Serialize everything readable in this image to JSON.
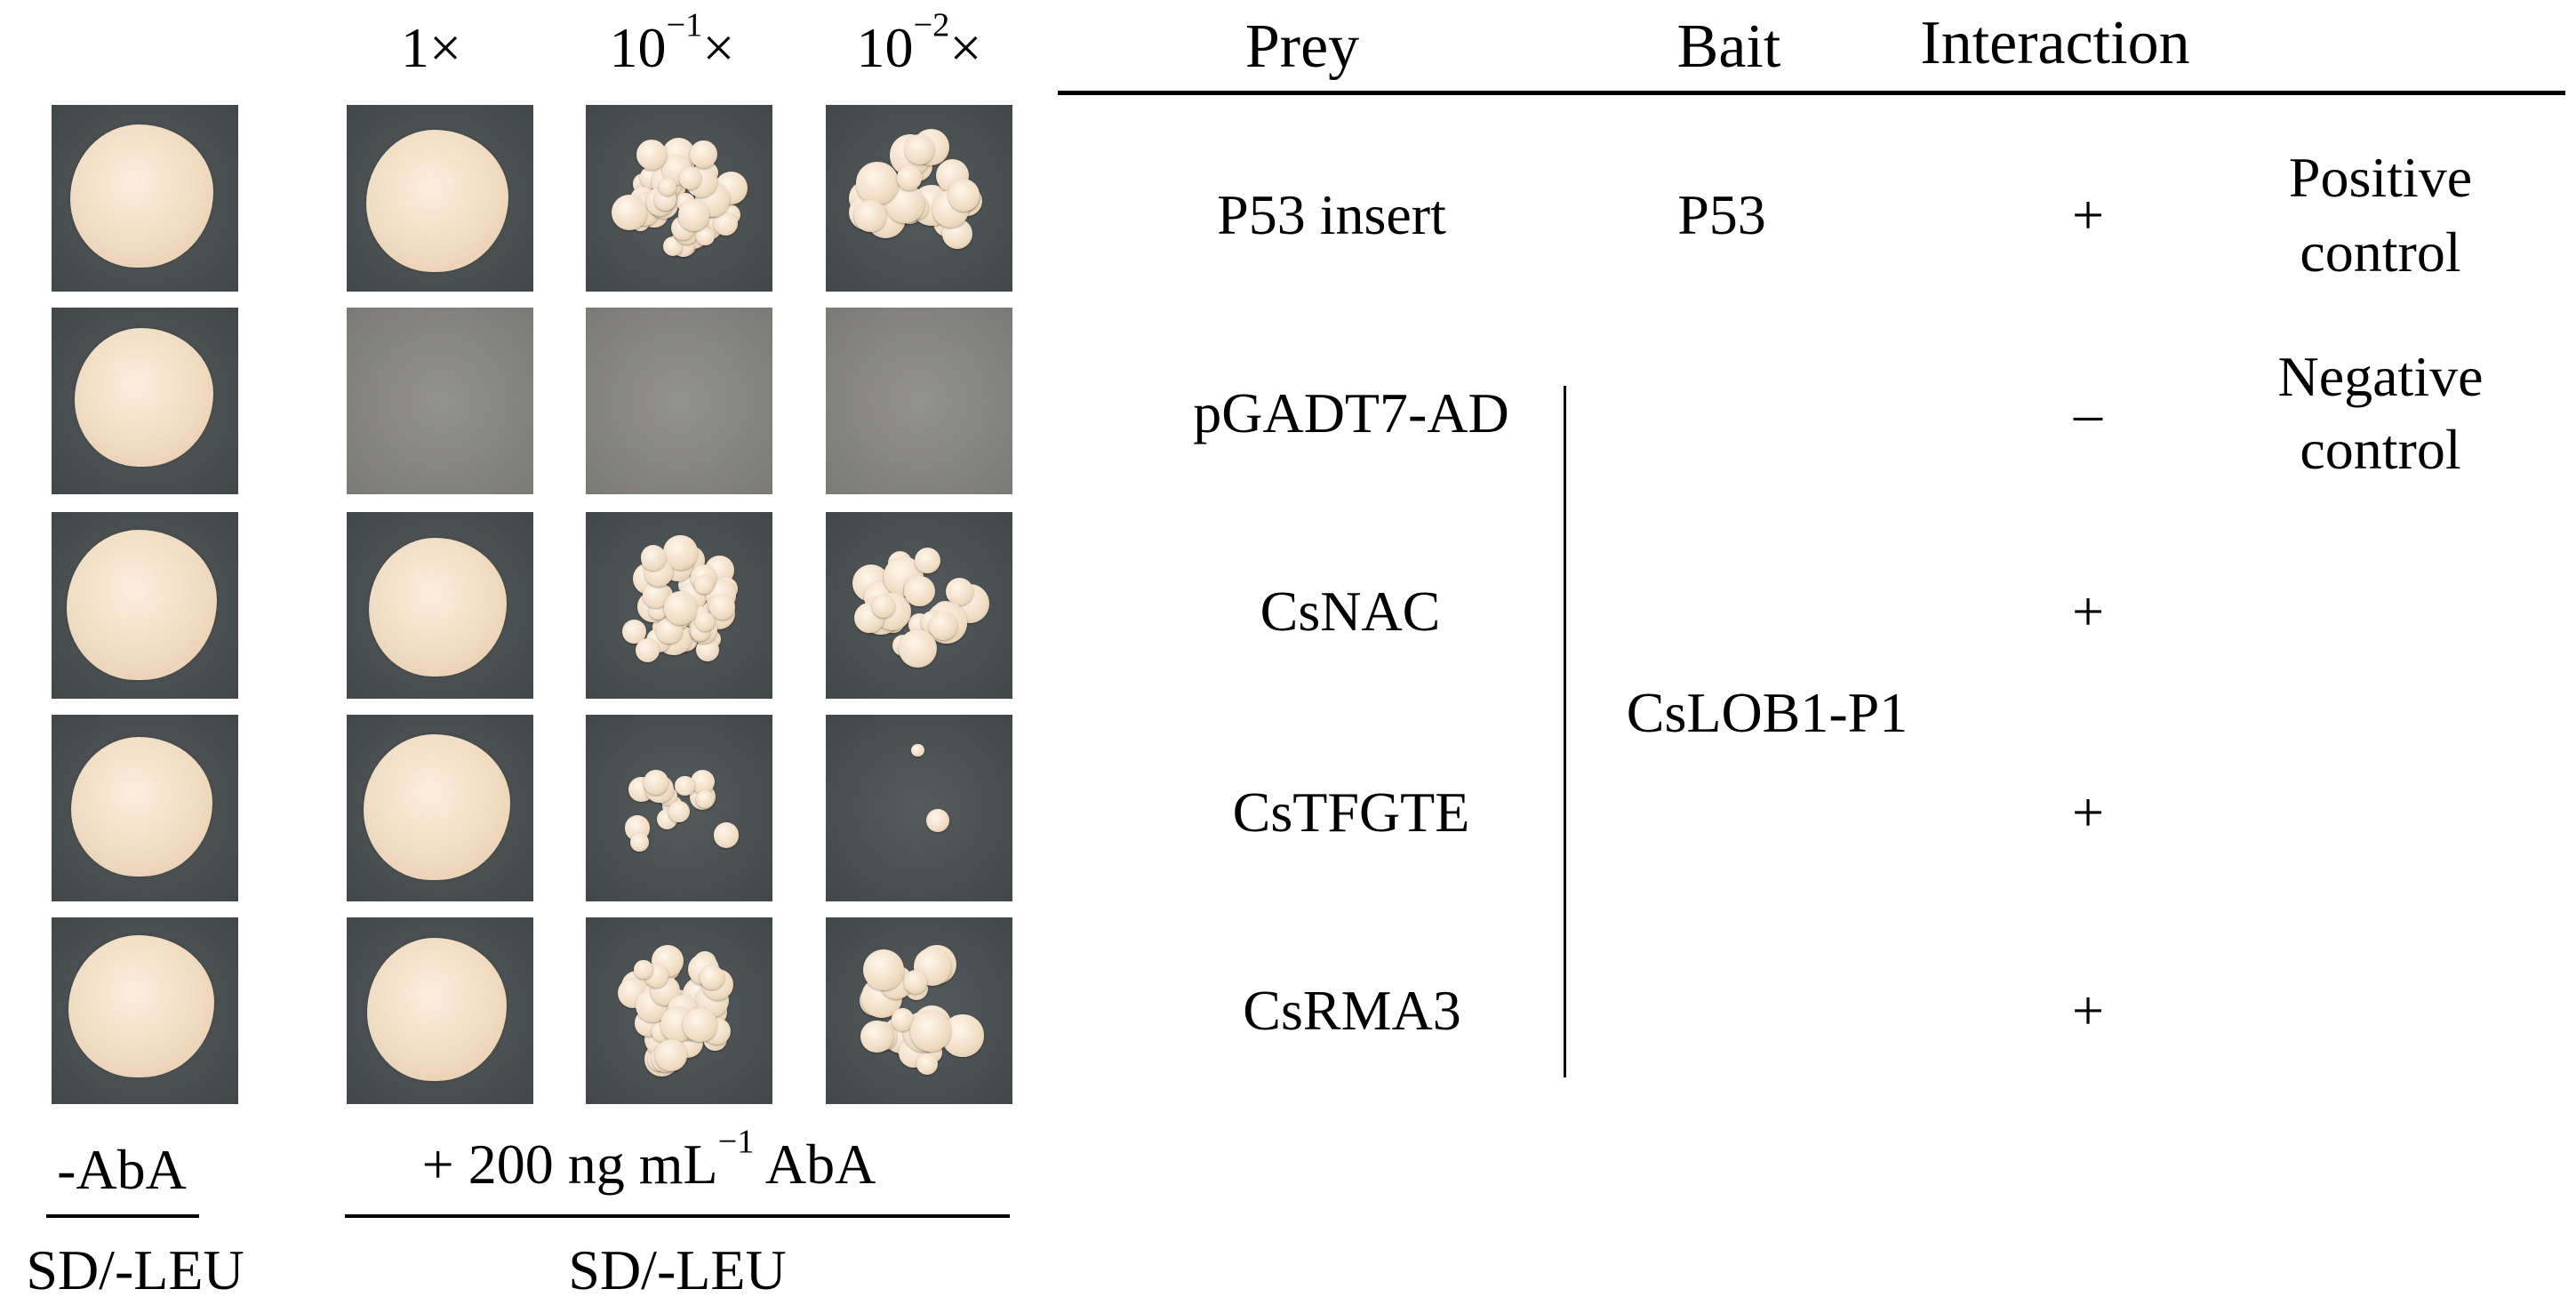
{
  "left_panel": {
    "dilution_headers": [
      {
        "base": "1×",
        "exp": ""
      },
      {
        "base": "10",
        "exp": "−1",
        "suffix": "×"
      },
      {
        "base": "10",
        "exp": "−2",
        "suffix": "×"
      }
    ],
    "no_aba_label": "-AbA",
    "aba_label": {
      "prefix": "+ 200 ng mL",
      "exp": "−1",
      "suffix": " AbA"
    },
    "medium_left": "SD/-LEU",
    "medium_right": "SD/-LEU",
    "rows": [
      {
        "growth": [
          "full",
          "full",
          "many",
          "some"
        ]
      },
      {
        "growth": [
          "full",
          "none",
          "none",
          "none"
        ]
      },
      {
        "growth": [
          "full",
          "full",
          "many",
          "some"
        ]
      },
      {
        "growth": [
          "full",
          "full",
          "few",
          "rare"
        ]
      },
      {
        "growth": [
          "full",
          "full",
          "many",
          "some"
        ]
      }
    ]
  },
  "table": {
    "headers": {
      "prey": "Prey",
      "bait": "Bait",
      "interaction": "Interaction"
    },
    "rows": [
      {
        "prey": "P53 insert",
        "bait": "P53",
        "interaction": "+",
        "note_line1": "Positive",
        "note_line2": "control"
      },
      {
        "prey": "pGADT7-AD",
        "bait": "",
        "interaction": "–",
        "note_line1": "Negative",
        "note_line2": "control"
      },
      {
        "prey": "CsNAC",
        "bait": "",
        "interaction": "+",
        "note_line1": "",
        "note_line2": ""
      },
      {
        "prey": "CsTFGTE",
        "bait": "",
        "interaction": "+",
        "note_line1": "",
        "note_line2": ""
      },
      {
        "prey": "CsRMA3",
        "bait": "",
        "interaction": "+",
        "note_line1": "",
        "note_line2": ""
      }
    ],
    "shared_bait": "CsLOB1-P1"
  },
  "colors": {
    "plate_dark": "#4b5153",
    "plate_blank": "#8c8b86",
    "colony": "#f1dcc2"
  }
}
